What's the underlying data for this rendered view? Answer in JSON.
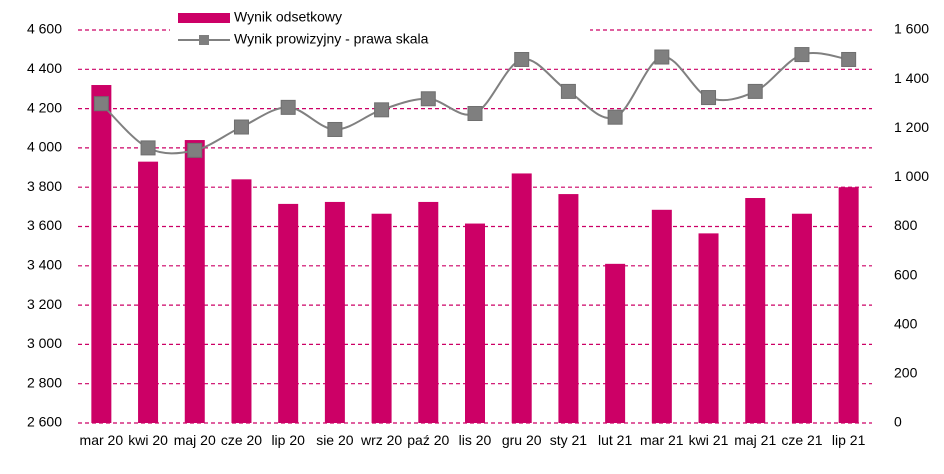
{
  "chart_data": {
    "type": "bar-line",
    "categories": [
      "mar 20",
      "kwi 20",
      "maj 20",
      "cze 20",
      "lip 20",
      "sie 20",
      "wrz 20",
      "paź 20",
      "lis 20",
      "gru 20",
      "sty 21",
      "lut 21",
      "mar 21",
      "kwi 21",
      "maj 21",
      "cze 21",
      "lip 21"
    ],
    "series": [
      {
        "name": "Wynik odsetkowy",
        "type": "bar",
        "color": "#cc0066",
        "values": [
          4320,
          3930,
          4040,
          3840,
          3715,
          3725,
          3665,
          3725,
          3615,
          3870,
          3765,
          3410,
          3685,
          3565,
          3745,
          3665,
          3800
        ]
      },
      {
        "name": "Wynik prowizyjny - prawa skala",
        "type": "line",
        "axis": "y2",
        "color": "#808080",
        "values": [
          1300,
          1120,
          1110,
          1205,
          1285,
          1195,
          1275,
          1320,
          1260,
          1480,
          1350,
          1245,
          1490,
          1325,
          1350,
          1500,
          1480
        ]
      }
    ],
    "ylim": [
      2600,
      4600
    ],
    "yticks": [
      {
        "value": 2600,
        "label": "2 600"
      },
      {
        "value": 2800,
        "label": "2 800"
      },
      {
        "value": 3000,
        "label": "3 000"
      },
      {
        "value": 3200,
        "label": "3 200"
      },
      {
        "value": 3400,
        "label": "3 400"
      },
      {
        "value": 3600,
        "label": "3 600"
      },
      {
        "value": 3800,
        "label": "3 800"
      },
      {
        "value": 4000,
        "label": "4 000"
      },
      {
        "value": 4200,
        "label": "4 200"
      },
      {
        "value": 4400,
        "label": "4 400"
      },
      {
        "value": 4600,
        "label": "4 600"
      }
    ],
    "y2lim": [
      0,
      1600
    ],
    "y2ticks": [
      0,
      200,
      400,
      600,
      800,
      {
        "value": 1000,
        "label": "1 000"
      },
      {
        "value": 1200,
        "label": "1 200"
      },
      {
        "value": 1400,
        "label": "1 400"
      },
      {
        "value": 1600,
        "label": "1 600"
      }
    ],
    "grid": true,
    "grid_color": "#cc0066",
    "legend": "top-left"
  }
}
